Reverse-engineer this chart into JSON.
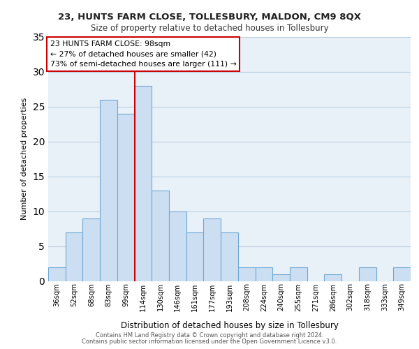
{
  "title": "23, HUNTS FARM CLOSE, TOLLESBURY, MALDON, CM9 8QX",
  "subtitle": "Size of property relative to detached houses in Tollesbury",
  "xlabel": "Distribution of detached houses by size in Tollesbury",
  "ylabel": "Number of detached properties",
  "categories": [
    "36sqm",
    "52sqm",
    "68sqm",
    "83sqm",
    "99sqm",
    "114sqm",
    "130sqm",
    "146sqm",
    "161sqm",
    "177sqm",
    "193sqm",
    "208sqm",
    "224sqm",
    "240sqm",
    "255sqm",
    "271sqm",
    "286sqm",
    "302sqm",
    "318sqm",
    "333sqm",
    "349sqm"
  ],
  "values": [
    2,
    7,
    9,
    26,
    24,
    28,
    13,
    10,
    7,
    9,
    7,
    2,
    2,
    1,
    2,
    0,
    1,
    0,
    2,
    0,
    2
  ],
  "bar_color": "#ccdff2",
  "bar_edge_color": "#6fa8d4",
  "grid_color": "#b8cfe0",
  "background_color": "#e8f0f8",
  "marker_line_color": "#cc0000",
  "marker_line_index": 4,
  "marker_label": "23 HUNTS FARM CLOSE: 98sqm",
  "annotation_line1": "← 27% of detached houses are smaller (42)",
  "annotation_line2": "73% of semi-detached houses are larger (111) →",
  "annotation_box_color": "#ffffff",
  "annotation_box_edge": "#cc0000",
  "ylim": [
    0,
    35
  ],
  "yticks": [
    0,
    5,
    10,
    15,
    20,
    25,
    30,
    35
  ],
  "footer1": "Contains HM Land Registry data © Crown copyright and database right 2024.",
  "footer2": "Contains public sector information licensed under the Open Government Licence v3.0."
}
